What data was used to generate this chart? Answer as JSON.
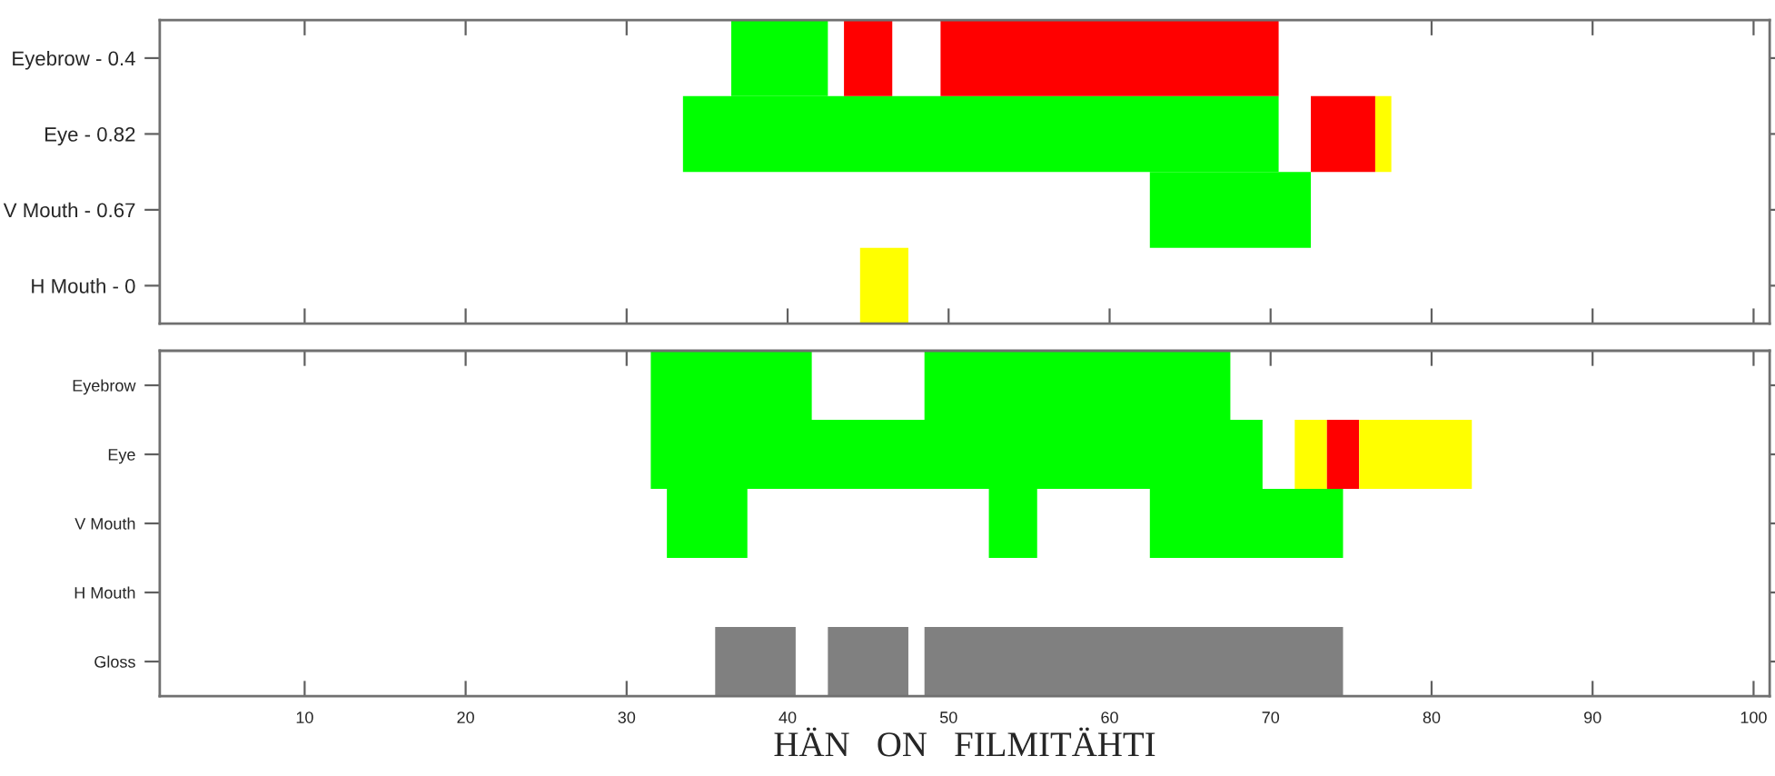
{
  "chart_data": [
    {
      "type": "bar",
      "orientation": "horizontal",
      "categories": [
        "Eyebrow - 0.4",
        "Eye - 0.82",
        "V Mouth - 0.67",
        "H Mouth - 0"
      ],
      "xlim": [
        1,
        101
      ],
      "xticks": [
        10,
        20,
        30,
        40,
        50,
        60,
        70,
        80,
        90,
        100
      ],
      "tick_labels": "y",
      "grid": false,
      "series": [
        {
          "base": [
            36.5,
            33.5,
            62.5,
            44.5
          ],
          "values": [
            6,
            37,
            10,
            3
          ],
          "colors": [
            "#00ff00",
            "#00ff00",
            "#00ff00",
            "#ffff00"
          ]
        },
        {
          "base": [
            43.5,
            72.5,
            null,
            null
          ],
          "values": [
            3,
            4,
            null,
            null
          ],
          "colors": [
            "#ff0000",
            "#ff0000",
            null,
            null
          ]
        },
        {
          "base": [
            49.5,
            76.5,
            null,
            null
          ],
          "values": [
            21,
            1,
            null,
            null
          ],
          "colors": [
            "#ff0000",
            "#ffff00",
            null,
            null
          ]
        }
      ]
    },
    {
      "type": "bar",
      "orientation": "horizontal",
      "categories": [
        "Eyebrow",
        "Eye",
        "V Mouth",
        "H Mouth",
        "Gloss"
      ],
      "xlim": [
        1,
        101
      ],
      "xticks": [
        10,
        20,
        30,
        40,
        50,
        60,
        70,
        80,
        90,
        100
      ],
      "xlabel": "HÄN   ON   FILMITÄHTI",
      "grid": false,
      "series": [
        {
          "base": [
            31.5,
            31.5,
            32.5,
            null,
            35.5
          ],
          "values": [
            10,
            38,
            5,
            null,
            5
          ],
          "colors": [
            "#00ff00",
            "#00ff00",
            "#00ff00",
            null,
            "#808080"
          ]
        },
        {
          "base": [
            48.5,
            71.5,
            52.5,
            null,
            42.5
          ],
          "values": [
            19,
            2,
            3,
            null,
            5
          ],
          "colors": [
            "#00ff00",
            "#ffff00",
            "#00ff00",
            null,
            "#808080"
          ]
        },
        {
          "base": [
            null,
            73.5,
            62.5,
            null,
            48.5
          ],
          "values": [
            null,
            2,
            12,
            null,
            26
          ],
          "colors": [
            null,
            "#ff0000",
            "#00ff00",
            null,
            "#808080"
          ]
        },
        {
          "base": [
            null,
            75.5,
            null,
            null,
            null
          ],
          "values": [
            null,
            7,
            null,
            null,
            null
          ],
          "colors": [
            null,
            "#ffff00",
            null,
            null,
            null
          ]
        }
      ]
    }
  ]
}
